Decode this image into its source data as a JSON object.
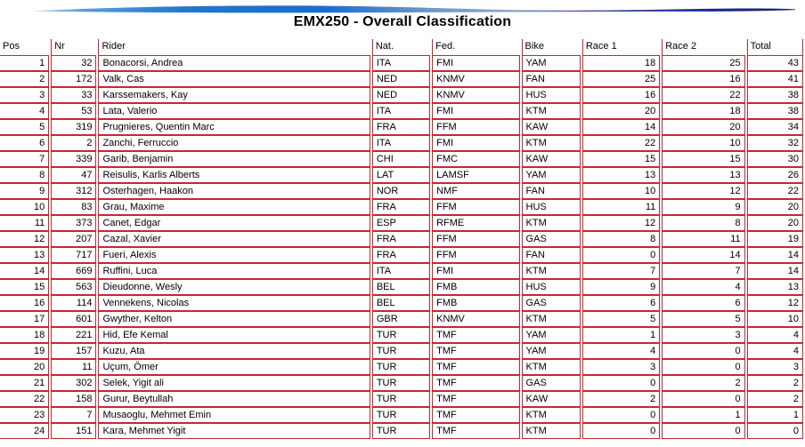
{
  "title": "EMX250 - Overall Classification",
  "colors": {
    "table_border": "#c22a2a",
    "text": "#000000",
    "swoosh_light": "#a8c9e8",
    "swoosh_blue": "#1a6bcd",
    "swoosh_fade": "#93a8c6",
    "swoosh_navy": "#1f2d93",
    "swoosh_dark": "#131f6e"
  },
  "table": {
    "columns": [
      {
        "key": "pos",
        "label": "Pos",
        "align": "right"
      },
      {
        "key": "nr",
        "label": "Nr",
        "align": "right"
      },
      {
        "key": "rider",
        "label": "Rider",
        "align": "left"
      },
      {
        "key": "nat",
        "label": "Nat.",
        "align": "left"
      },
      {
        "key": "fed",
        "label": "Fed.",
        "align": "left"
      },
      {
        "key": "bike",
        "label": "Bike",
        "align": "left"
      },
      {
        "key": "race1",
        "label": "Race 1",
        "align": "right"
      },
      {
        "key": "race2",
        "label": "Race 2",
        "align": "right"
      },
      {
        "key": "total",
        "label": "Total",
        "align": "right"
      }
    ],
    "rows": [
      [
        1,
        32,
        "Bonacorsi, Andrea",
        "ITA",
        "FMI",
        "YAM",
        18,
        25,
        43
      ],
      [
        2,
        172,
        "Valk, Cas",
        "NED",
        "KNMV",
        "FAN",
        25,
        16,
        41
      ],
      [
        3,
        33,
        "Karssemakers, Kay",
        "NED",
        "KNMV",
        "HUS",
        16,
        22,
        38
      ],
      [
        4,
        53,
        "Lata, Valerio",
        "ITA",
        "FMI",
        "KTM",
        20,
        18,
        38
      ],
      [
        5,
        319,
        "Prugnieres, Quentin Marc",
        "FRA",
        "FFM",
        "KAW",
        14,
        20,
        34
      ],
      [
        6,
        2,
        "Zanchi, Ferruccio",
        "ITA",
        "FMI",
        "KTM",
        22,
        10,
        32
      ],
      [
        7,
        339,
        "Garib, Benjamin",
        "CHI",
        "FMC",
        "KAW",
        15,
        15,
        30
      ],
      [
        8,
        47,
        "Reisulis, Karlis Alberts",
        "LAT",
        "LAMSF",
        "YAM",
        13,
        13,
        26
      ],
      [
        9,
        312,
        "Osterhagen, Haakon",
        "NOR",
        "NMF",
        "FAN",
        10,
        12,
        22
      ],
      [
        10,
        83,
        "Grau, Maxime",
        "FRA",
        "FFM",
        "HUS",
        11,
        9,
        20
      ],
      [
        11,
        373,
        "Canet, Edgar",
        "ESP",
        "RFME",
        "KTM",
        12,
        8,
        20
      ],
      [
        12,
        207,
        "Cazal, Xavier",
        "FRA",
        "FFM",
        "GAS",
        8,
        11,
        19
      ],
      [
        13,
        717,
        "Fueri, Alexis",
        "FRA",
        "FFM",
        "FAN",
        0,
        14,
        14
      ],
      [
        14,
        669,
        "Ruffini, Luca",
        "ITA",
        "FMI",
        "KTM",
        7,
        7,
        14
      ],
      [
        15,
        563,
        "Dieudonne, Wesly",
        "BEL",
        "FMB",
        "HUS",
        9,
        4,
        13
      ],
      [
        16,
        114,
        "Vennekens, Nicolas",
        "BEL",
        "FMB",
        "GAS",
        6,
        6,
        12
      ],
      [
        17,
        601,
        "Gwyther, Kelton",
        "GBR",
        "KNMV",
        "KTM",
        5,
        5,
        10
      ],
      [
        18,
        221,
        "Hid, Efe Kemal",
        "TUR",
        "TMF",
        "YAM",
        1,
        3,
        4
      ],
      [
        19,
        157,
        "Kuzu, Ata",
        "TUR",
        "TMF",
        "YAM",
        4,
        0,
        4
      ],
      [
        20,
        11,
        "Uçum, Ömer",
        "TUR",
        "TMF",
        "KTM",
        3,
        0,
        3
      ],
      [
        21,
        302,
        "Selek, Yigit ali",
        "TUR",
        "TMF",
        "GAS",
        0,
        2,
        2
      ],
      [
        22,
        158,
        "Gurur, Beytullah",
        "TUR",
        "TMF",
        "KAW",
        2,
        0,
        2
      ],
      [
        23,
        7,
        "Musaoglu, Mehmet Emin",
        "TUR",
        "TMF",
        "KTM",
        0,
        1,
        1
      ],
      [
        24,
        151,
        "Kara, Mehmet Yigit",
        "TUR",
        "TMF",
        "KTM",
        0,
        0,
        0
      ]
    ]
  }
}
